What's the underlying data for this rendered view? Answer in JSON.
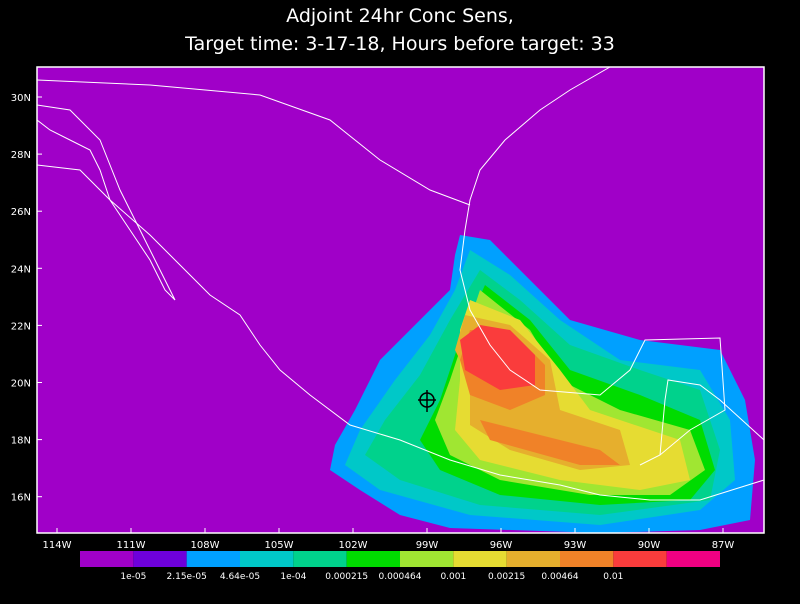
{
  "title": [
    "Adjoint 24hr Conc Sens,",
    "Target time: 3-17-18, Hours before target: 33"
  ],
  "lon_labels": [
    "114W",
    "111W",
    "108W",
    "105W",
    "102W",
    "99W",
    "96W",
    "93W",
    "90W",
    "87W"
  ],
  "lat_labels": [
    "30N",
    "28N",
    "26N",
    "24N",
    "22N",
    "20N",
    "18N",
    "16N"
  ],
  "colorbar": {
    "colors": [
      "#a000c8",
      "#6e00dc",
      "#00a0ff",
      "#00c8c8",
      "#00d28c",
      "#00dc00",
      "#a0e632",
      "#e6dc32",
      "#e6af2d",
      "#f08228",
      "#fa3c3c",
      "#f00082"
    ],
    "labels": [
      "1e-05",
      "2.15e-05",
      "4.64e-05",
      "1e-04",
      "0.000215",
      "0.000464",
      "0.001",
      "0.00215",
      "0.00464",
      "0.01"
    ]
  }
}
